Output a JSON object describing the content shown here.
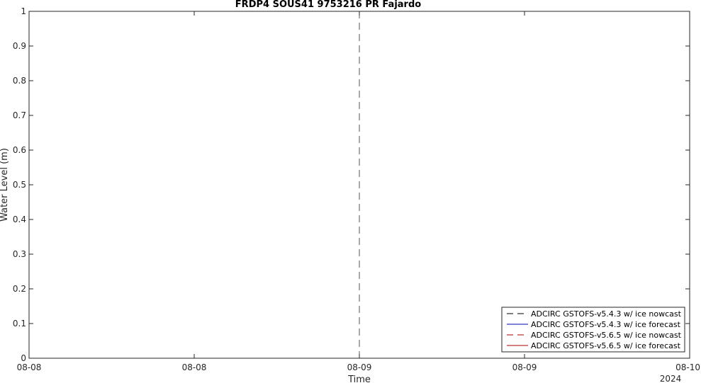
{
  "chart_data": {
    "type": "line",
    "title": "FRDP4 SOUS41 9753216 PR Fajardo",
    "xlabel": "Time",
    "ylabel": "Water Level (m)",
    "ylim": [
      0,
      1
    ],
    "y_ticks": [
      0,
      0.1,
      0.2,
      0.3,
      0.4,
      0.5,
      0.6,
      0.7,
      0.8,
      0.9,
      1
    ],
    "y_tick_labels": [
      "0",
      "0.1",
      "0.2",
      "0.3",
      "0.4",
      "0.5",
      "0.6",
      "0.7",
      "0.8",
      "0.9",
      "1"
    ],
    "xlim": [
      "2024-08-08 00:00",
      "2024-08-10 00:00"
    ],
    "x_ticks": [
      "2024-08-08 00:00",
      "2024-08-08 12:00",
      "2024-08-09 00:00",
      "2024-08-09 12:00",
      "2024-08-10 00:00"
    ],
    "x_tick_labels": [
      "08-08",
      "08-08",
      "08-09",
      "08-09",
      "08-10"
    ],
    "x_secondary_label": "2024",
    "grid": false,
    "legend_location": "bottom-right",
    "vertical_marker": {
      "x": "2024-08-09 00:00",
      "style": "dashed",
      "color": "#555555"
    },
    "series": [
      {
        "name": "ADCIRC GSTOFS-v5.4.3 w/ ice nowcast",
        "color": "#000000",
        "dash": "dashed",
        "values": []
      },
      {
        "name": "ADCIRC GSTOFS-v5.4.3 w/ ice forecast",
        "color": "#0000aa",
        "dash": "solid",
        "values": []
      },
      {
        "name": "ADCIRC GSTOFS-v5.6.5 w/ ice nowcast",
        "color": "#aa0000",
        "dash": "dashed",
        "values": []
      },
      {
        "name": "ADCIRC GSTOFS-v5.6.5 w/ ice forecast",
        "color": "#aa0000",
        "dash": "solid",
        "values": []
      }
    ]
  }
}
